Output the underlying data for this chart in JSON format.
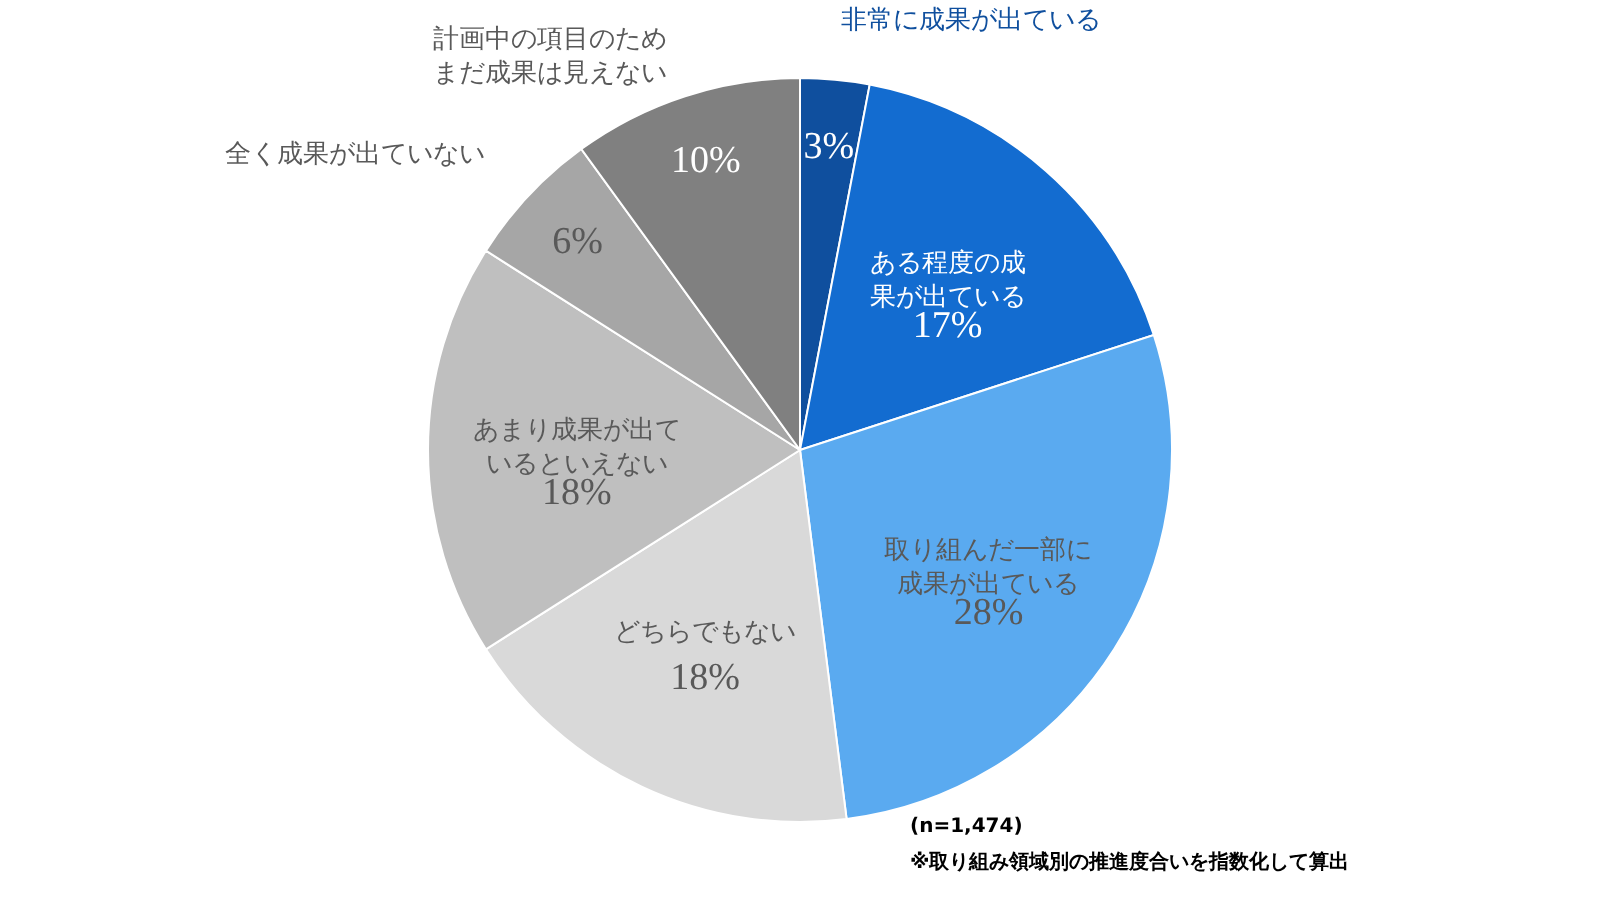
{
  "chart_data": {
    "type": "pie",
    "categories": [
      "非常に成果が出ている",
      "ある程度の成果が出ている",
      "取り組んだ一部に成果が出ている",
      "どちらでもない",
      "あまり成果が出ているといえない",
      "全く成果が出ていない",
      "計画中の項目のためまだ成果は見えない"
    ],
    "values": [
      3,
      17,
      28,
      18,
      18,
      6,
      10
    ],
    "colors": [
      "#0f4f9e",
      "#136cd0",
      "#5aaaf0",
      "#d9d9d9",
      "#bfbfbf",
      "#a6a6a6",
      "#808080"
    ],
    "value_labels": [
      "3%",
      "17%",
      "28%",
      "18%",
      "18%",
      "6%",
      "10%"
    ],
    "annotations": [
      "(n=1,474)",
      "※取り組み領域別の推進度合いを指数化して算出"
    ]
  }
}
